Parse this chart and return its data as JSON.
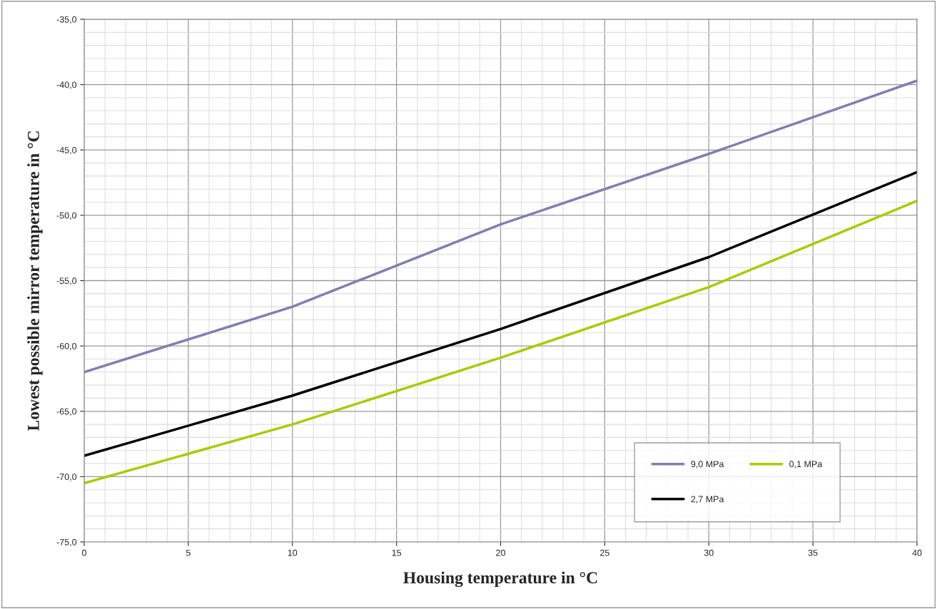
{
  "chart_data": {
    "type": "line",
    "xlabel": "Housing temperature in °C",
    "ylabel": "Lowest possible mirror temperature in °C",
    "x": [
      0,
      10,
      20,
      30,
      40
    ],
    "series": [
      {
        "name": "9,0 MPa",
        "color": "#7f7fb0",
        "values": [
          -62.0,
          -57.0,
          -50.7,
          -45.3,
          -39.7
        ]
      },
      {
        "name": "2,7 MPa",
        "color": "#000000",
        "values": [
          -68.4,
          -63.8,
          -58.7,
          -53.2,
          -46.7
        ]
      },
      {
        "name": "0,1 MPa",
        "color": "#a6cc00",
        "values": [
          -70.5,
          -66.0,
          -60.9,
          -55.5,
          -48.9
        ]
      }
    ],
    "xlim": [
      0,
      40
    ],
    "xticks": [
      0,
      5,
      10,
      15,
      20,
      25,
      30,
      35,
      40
    ],
    "ylim": [
      -75,
      -35
    ],
    "yticks": [
      {
        "value": -75,
        "label": "-75,0"
      },
      {
        "value": -70,
        "label": "-70,0"
      },
      {
        "value": -65,
        "label": "-65,0"
      },
      {
        "value": -60,
        "label": "-60,0"
      },
      {
        "value": -55,
        "label": "-55,0"
      },
      {
        "value": -50,
        "label": "-50,0"
      },
      {
        "value": -45,
        "label": "-45,0"
      },
      {
        "value": -40,
        "label": "-40,0"
      },
      {
        "value": -35,
        "label": "-35,0"
      }
    ],
    "grid": true,
    "legend": "bottom right",
    "marker": "none",
    "line_style": "solid"
  }
}
